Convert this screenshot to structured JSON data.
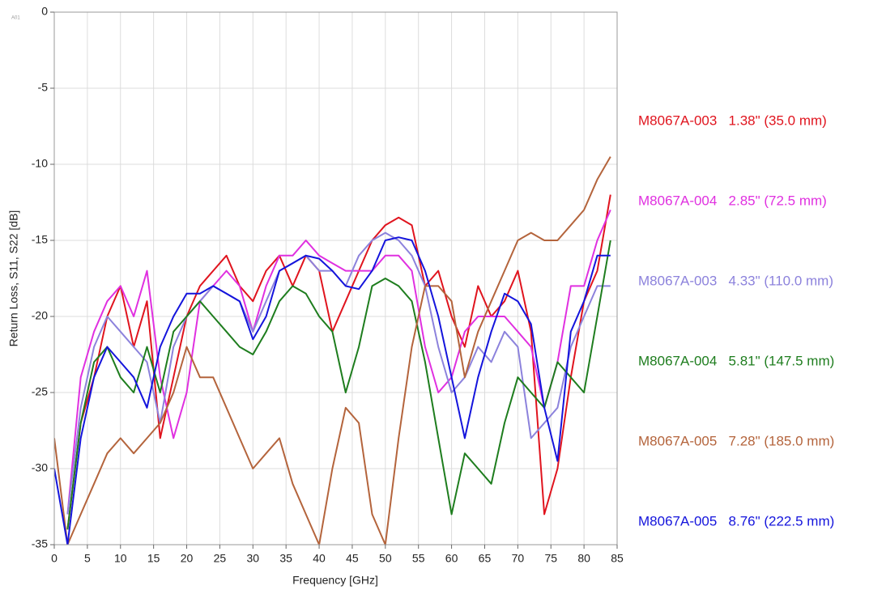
{
  "chart_data": {
    "type": "line",
    "annotation": "A01",
    "x_label": "Frequency [GHz]",
    "y_label": "Return Loss, S11, S22 [dB]",
    "x": [
      0,
      2,
      4,
      6,
      8,
      10,
      12,
      14,
      16,
      18,
      20,
      22,
      24,
      26,
      28,
      30,
      32,
      34,
      36,
      38,
      40,
      42,
      44,
      46,
      48,
      50,
      52,
      54,
      56,
      58,
      60,
      62,
      64,
      66,
      68,
      70,
      72,
      74,
      76,
      78,
      80,
      82,
      84
    ],
    "series": [
      {
        "name": "M8067A-003   1.38\" (35.0 mm)",
        "color": "#e0141e",
        "values": [
          null,
          -34,
          -27,
          -24,
          -20,
          -18,
          -22,
          -19,
          -28,
          -24,
          -20,
          -18,
          -17,
          -16,
          -18,
          -19,
          -17,
          -16,
          -18,
          -16,
          -17,
          -21,
          -19,
          -17,
          -15,
          -14,
          -13.5,
          -14,
          -18,
          -17,
          -20,
          -22,
          -18,
          -20,
          -19,
          -17,
          -21,
          -33,
          -30,
          -24,
          -19,
          -17,
          -12
        ]
      },
      {
        "name": "M8067A-004   2.85\" (72.5 mm)",
        "color": "#e030e0",
        "values": [
          null,
          -33,
          -24,
          -21,
          -19,
          -18,
          -20,
          -17,
          -24,
          -28,
          -25,
          -19,
          -18,
          -17,
          -18,
          -21,
          -18,
          -16,
          -16,
          -15,
          -16,
          -16.5,
          -17,
          -17,
          -17,
          -16,
          -16,
          -17,
          -22,
          -25,
          -24,
          -21,
          -20,
          -20,
          -20,
          -21,
          -22,
          -26,
          -23,
          -18,
          -18,
          -15,
          -13
        ]
      },
      {
        "name": "M8067A-003   4.33\" (110.0 mm)",
        "color": "#8c82dc",
        "values": [
          null,
          -33,
          -26,
          -22,
          -20,
          -21,
          -22,
          -23,
          -27,
          -22,
          -20,
          -19,
          -18,
          -18.5,
          -19,
          -21,
          -19,
          -17,
          -16.5,
          -16,
          -17,
          -17,
          -18,
          -16,
          -15,
          -14.5,
          -15,
          -16,
          -18,
          -22,
          -25,
          -24,
          -22,
          -23,
          -21,
          -22,
          -28,
          -27,
          -26,
          -22,
          -20,
          -18,
          -18
        ]
      },
      {
        "name": "M8067A-004   5.81\" (147.5 mm)",
        "color": "#1e7d1e",
        "values": [
          null,
          -34,
          -27,
          -23,
          -22,
          -24,
          -25,
          -22,
          -25,
          -21,
          -20,
          -19,
          -20,
          -21,
          -22,
          -22.5,
          -21,
          -19,
          -18,
          -18.5,
          -20,
          -21,
          -25,
          -22,
          -18,
          -17.5,
          -18,
          -19,
          -23,
          -28,
          -33,
          -29,
          -30,
          -31,
          -27,
          -24,
          -25,
          -26,
          -23,
          -24,
          -25,
          -20,
          -15
        ]
      },
      {
        "name": "M8067A-005   7.28\" (185.0 mm)",
        "color": "#b4643c",
        "values": [
          -28,
          -35,
          -33,
          -31,
          -29,
          -28,
          -29,
          -28,
          -27,
          -25,
          -22,
          -24,
          -24,
          -26,
          -28,
          -30,
          -29,
          -28,
          -31,
          -33,
          -35,
          -30,
          -26,
          -27,
          -33,
          -35,
          -28,
          -22,
          -18,
          -18,
          -19,
          -24,
          -21,
          -19,
          -17,
          -15,
          -14.5,
          -15,
          -15,
          -14,
          -13,
          -11,
          -9.5
        ]
      },
      {
        "name": "M8067A-005   8.76\" (222.5 mm)",
        "color": "#1414dc",
        "values": [
          -30,
          -35,
          -28,
          -24,
          -22,
          -23,
          -24,
          -26,
          -22,
          -20,
          -18.5,
          -18.5,
          -18,
          -18.5,
          -19,
          -21.5,
          -20,
          -17,
          -16.5,
          -16,
          -16.2,
          -17,
          -18,
          -18.2,
          -17,
          -15,
          -14.8,
          -15,
          -17,
          -20,
          -24,
          -28,
          -24,
          -21,
          -18.5,
          -19,
          -20.5,
          -26,
          -29.5,
          -21,
          -19,
          -16,
          -16
        ]
      }
    ],
    "xlim": [
      0,
      85
    ],
    "xticks": [
      0,
      5,
      10,
      15,
      20,
      25,
      30,
      35,
      40,
      45,
      50,
      55,
      60,
      65,
      70,
      75,
      80,
      85
    ],
    "ylim": [
      -35,
      0
    ],
    "yticks": [
      0,
      -5,
      -10,
      -15,
      -20,
      -25,
      -30,
      -35
    ],
    "grid": true,
    "legend": "right"
  }
}
